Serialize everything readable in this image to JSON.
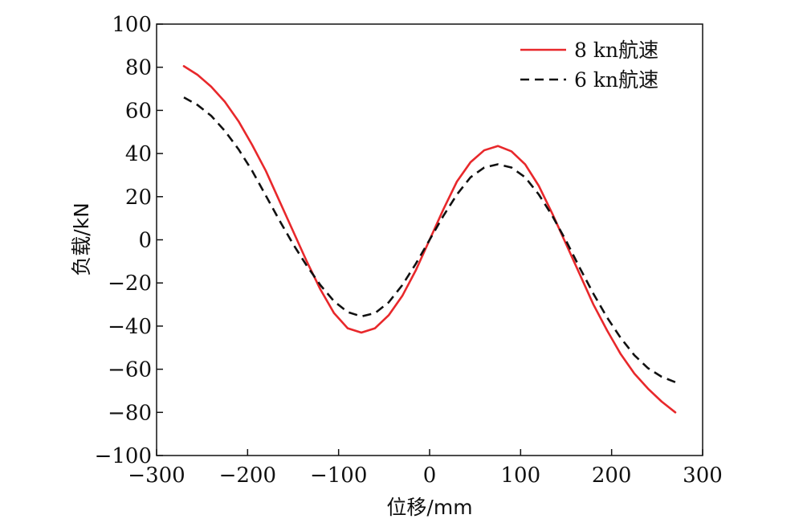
{
  "chart_data": {
    "type": "line",
    "title": "",
    "xlabel": "位移/mm",
    "ylabel": "负载/kN",
    "xlim": [
      -300,
      300
    ],
    "ylim": [
      -100,
      100
    ],
    "xticks": [
      -300,
      -200,
      -100,
      0,
      100,
      200,
      300
    ],
    "yticks": [
      -100,
      -80,
      -60,
      -40,
      -20,
      0,
      20,
      40,
      60,
      80,
      100
    ],
    "xtick_labels": [
      "−300",
      "−200",
      "−100",
      "0",
      "100",
      "200",
      "300"
    ],
    "ytick_labels": [
      "−100",
      "−80",
      "−60",
      "−40",
      "−20",
      "0",
      "20",
      "40",
      "60",
      "80",
      "100"
    ],
    "grid": false,
    "legend_position": "top-right",
    "series": [
      {
        "name": "8 kn航速",
        "color": "#e8282b",
        "style": "solid",
        "x": [
          -270,
          -255,
          -240,
          -225,
          -210,
          -195,
          -180,
          -165,
          -150,
          -135,
          -120,
          -105,
          -90,
          -75,
          -60,
          -45,
          -30,
          -15,
          0,
          15,
          30,
          45,
          60,
          75,
          90,
          105,
          120,
          135,
          150,
          165,
          180,
          195,
          210,
          225,
          240,
          255,
          270
        ],
        "y": [
          80.5,
          76.5,
          71,
          64,
          55,
          44,
          32,
          18,
          4,
          -10,
          -23,
          -34,
          -41,
          -43,
          -41,
          -35,
          -26,
          -14,
          0,
          14,
          27,
          36,
          41.5,
          43.5,
          41,
          35,
          25,
          12,
          -2,
          -16,
          -30,
          -42,
          -53,
          -62,
          -69,
          -75,
          -80
        ]
      },
      {
        "name": "6 kn航速",
        "color": "#111111",
        "style": "dashed",
        "x": [
          -270,
          -255,
          -240,
          -225,
          -210,
          -195,
          -180,
          -165,
          -150,
          -135,
          -120,
          -105,
          -90,
          -75,
          -60,
          -45,
          -30,
          -15,
          0,
          15,
          30,
          45,
          60,
          75,
          90,
          105,
          120,
          135,
          150,
          165,
          180,
          195,
          210,
          225,
          240,
          255,
          270
        ],
        "y": [
          66,
          62.5,
          57.5,
          50.5,
          42,
          32,
          20.5,
          9,
          -2,
          -12,
          -21,
          -28.5,
          -33.5,
          -35.5,
          -34,
          -29,
          -21,
          -11,
          0,
          11,
          21,
          29,
          33.5,
          35,
          33.5,
          29,
          21,
          11,
          -0.5,
          -13,
          -25,
          -36,
          -45.5,
          -53.5,
          -59.5,
          -63.5,
          -66
        ]
      }
    ]
  }
}
